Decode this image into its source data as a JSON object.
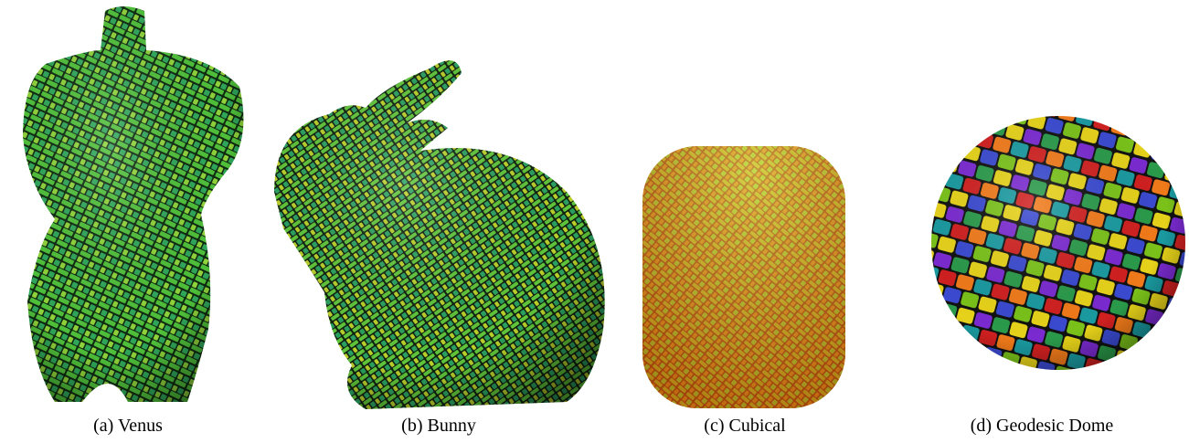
{
  "figure": {
    "panels": [
      {
        "caption": "(a) Venus"
      },
      {
        "caption": "(b) Bunny"
      },
      {
        "caption": "(c) Cubical"
      },
      {
        "caption": "(d) Geodesic Dome"
      }
    ]
  }
}
